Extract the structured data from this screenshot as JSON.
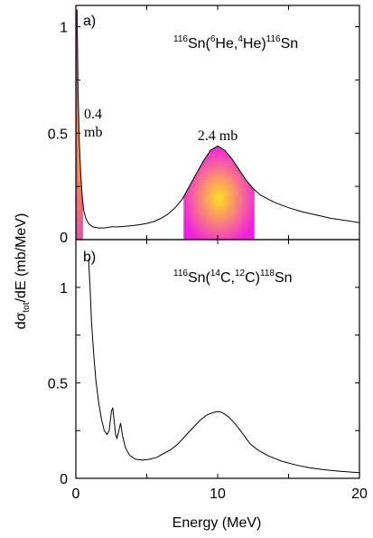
{
  "chart_data": [
    {
      "type": "line",
      "panel_label": "a)",
      "reaction": {
        "sup1": "116",
        "el1": "Sn(",
        "sup2": "6",
        "el2": "He,",
        "sup3": "4",
        "el3": "He)",
        "sup4": "116",
        "el4": "Sn"
      },
      "xlim": [
        0,
        20
      ],
      "ylim": [
        0,
        1.1
      ],
      "yticks": [
        {
          "v": 0,
          "label": "0"
        },
        {
          "v": 0.5,
          "label": "0.5"
        },
        {
          "v": 1,
          "label": "1"
        }
      ],
      "curve": [
        [
          0.08,
          1.08
        ],
        [
          0.15,
          0.7
        ],
        [
          0.25,
          0.45
        ],
        [
          0.35,
          0.3
        ],
        [
          0.45,
          0.2
        ],
        [
          0.55,
          0.14
        ],
        [
          0.7,
          0.1
        ],
        [
          0.9,
          0.075
        ],
        [
          1.2,
          0.06
        ],
        [
          1.6,
          0.055
        ],
        [
          2.0,
          0.055
        ],
        [
          2.5,
          0.06
        ],
        [
          3.0,
          0.06
        ],
        [
          3.5,
          0.063
        ],
        [
          4.0,
          0.066
        ],
        [
          4.5,
          0.07
        ],
        [
          5.0,
          0.076
        ],
        [
          5.5,
          0.085
        ],
        [
          6.0,
          0.1
        ],
        [
          6.5,
          0.12
        ],
        [
          7.0,
          0.15
        ],
        [
          7.5,
          0.19
        ],
        [
          8.0,
          0.25
        ],
        [
          8.5,
          0.31
        ],
        [
          9.0,
          0.37
        ],
        [
          9.5,
          0.42
        ],
        [
          10.0,
          0.44
        ],
        [
          10.5,
          0.42
        ],
        [
          11.0,
          0.38
        ],
        [
          11.5,
          0.33
        ],
        [
          12.0,
          0.28
        ],
        [
          12.5,
          0.24
        ],
        [
          13.0,
          0.21
        ],
        [
          14.0,
          0.175
        ],
        [
          15.0,
          0.15
        ],
        [
          16.0,
          0.13
        ],
        [
          17.0,
          0.115
        ],
        [
          18.0,
          0.1
        ],
        [
          19.0,
          0.09
        ],
        [
          20.0,
          0.08
        ]
      ],
      "shaded_regions": [
        {
          "x_from": 0.0,
          "x_to": 0.5,
          "label_line1": "0.4",
          "label_line2": "mb",
          "color_center": "#ffb000",
          "color_edge": "#e040c0"
        },
        {
          "x_from": 7.6,
          "x_to": 12.6,
          "label_line1": "2.4 mb",
          "label_line2": "",
          "color_center": "#ffe020",
          "color_edge": "#f020e0"
        }
      ]
    },
    {
      "type": "line",
      "panel_label": "b)",
      "reaction": {
        "sup1": "116",
        "el1": "Sn(",
        "sup2": "14",
        "el2": "C,",
        "sup3": "12",
        "el3": "C)",
        "sup4": "118",
        "el4": "Sn"
      },
      "xlim": [
        0,
        20
      ],
      "ylim": [
        0,
        1.25
      ],
      "xlabel": "Energy (MeV)",
      "xticks": [
        {
          "v": 0,
          "label": "0"
        },
        {
          "v": 10,
          "label": "10"
        },
        {
          "v": 20,
          "label": "20"
        }
      ],
      "yticks": [
        {
          "v": 0,
          "label": "0"
        },
        {
          "v": 0.5,
          "label": "0.5"
        },
        {
          "v": 1,
          "label": "1"
        }
      ],
      "curve": [
        [
          0.9,
          1.15
        ],
        [
          1.0,
          1.0
        ],
        [
          1.1,
          0.82
        ],
        [
          1.25,
          0.66
        ],
        [
          1.4,
          0.52
        ],
        [
          1.6,
          0.4
        ],
        [
          1.8,
          0.31
        ],
        [
          2.0,
          0.25
        ],
        [
          2.2,
          0.23
        ],
        [
          2.35,
          0.25
        ],
        [
          2.5,
          0.35
        ],
        [
          2.6,
          0.37
        ],
        [
          2.7,
          0.3
        ],
        [
          2.8,
          0.23
        ],
        [
          2.9,
          0.21
        ],
        [
          3.0,
          0.24
        ],
        [
          3.15,
          0.29
        ],
        [
          3.3,
          0.22
        ],
        [
          3.5,
          0.16
        ],
        [
          3.8,
          0.12
        ],
        [
          4.2,
          0.1
        ],
        [
          4.7,
          0.095
        ],
        [
          5.2,
          0.1
        ],
        [
          5.7,
          0.11
        ],
        [
          6.2,
          0.13
        ],
        [
          6.7,
          0.15
        ],
        [
          7.2,
          0.18
        ],
        [
          7.7,
          0.22
        ],
        [
          8.2,
          0.26
        ],
        [
          8.7,
          0.3
        ],
        [
          9.2,
          0.33
        ],
        [
          9.7,
          0.345
        ],
        [
          10.0,
          0.35
        ],
        [
          10.3,
          0.345
        ],
        [
          10.8,
          0.32
        ],
        [
          11.3,
          0.28
        ],
        [
          11.8,
          0.23
        ],
        [
          12.3,
          0.18
        ],
        [
          12.8,
          0.15
        ],
        [
          13.5,
          0.12
        ],
        [
          14.5,
          0.09
        ],
        [
          15.5,
          0.07
        ],
        [
          16.5,
          0.055
        ],
        [
          17.5,
          0.045
        ],
        [
          18.5,
          0.038
        ],
        [
          19.5,
          0.032
        ],
        [
          20.0,
          0.03
        ]
      ]
    }
  ],
  "ylabel_main": "dσ",
  "ylabel_sub": "tot",
  "ylabel_rest": "/dE (mb/MeV)"
}
